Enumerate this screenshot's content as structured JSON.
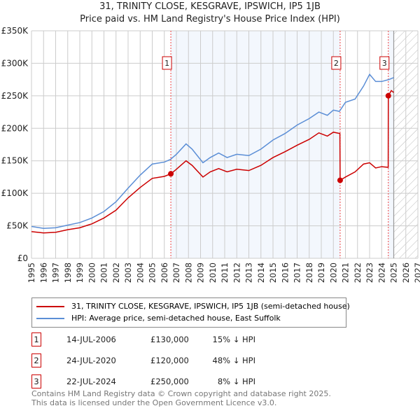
{
  "chart_data": {
    "type": "line",
    "title": "31, TRINITY CLOSE, KESGRAVE, IPSWICH, IP5 1JB",
    "subtitle": "Price paid vs. HM Land Registry's House Price Index (HPI)",
    "xlim": [
      1995,
      2027
    ],
    "ylim": [
      0,
      350000
    ],
    "x_ticks": [
      "1995",
      "1996",
      "1997",
      "1998",
      "1999",
      "2000",
      "2001",
      "2002",
      "2003",
      "2004",
      "2005",
      "2006",
      "2007",
      "2008",
      "2009",
      "2010",
      "2011",
      "2012",
      "2013",
      "2014",
      "2015",
      "2016",
      "2017",
      "2018",
      "2019",
      "2020",
      "2021",
      "2022",
      "2023",
      "2024",
      "2025",
      "2026",
      "2027"
    ],
    "y_ticks": [
      {
        "v": 0,
        "label": "£0"
      },
      {
        "v": 50000,
        "label": "£50K"
      },
      {
        "v": 100000,
        "label": "£100K"
      },
      {
        "v": 150000,
        "label": "£150K"
      },
      {
        "v": 200000,
        "label": "£200K"
      },
      {
        "v": 250000,
        "label": "£250K"
      },
      {
        "v": 300000,
        "label": "£300K"
      },
      {
        "v": 350000,
        "label": "£350K"
      }
    ],
    "grid": true,
    "forecast_from": 2025,
    "series": [
      {
        "name": "31, TRINITY CLOSE, KESGRAVE, IPSWICH, IP5 1JB (semi-detached house)",
        "color": "#cc0000",
        "x": [
          1995,
          1996,
          1997,
          1998,
          1999,
          2000,
          2001,
          2002,
          2003,
          2004,
          2005,
          2006,
          2006.54,
          2007,
          2007.8,
          2008.3,
          2009.2,
          2009.8,
          2010.5,
          2011.2,
          2012,
          2013,
          2014,
          2015,
          2016,
          2017,
          2018,
          2018.8,
          2019.5,
          2020,
          2020.54,
          2020.56,
          2021,
          2021.8,
          2022.5,
          2023,
          2023.5,
          2024,
          2024.54,
          2024.55,
          2024.8,
          2025
        ],
        "y": [
          41000,
          39000,
          40000,
          44000,
          47000,
          53000,
          62000,
          74000,
          93000,
          109000,
          123000,
          126000,
          130000,
          137000,
          150000,
          143000,
          125000,
          133000,
          138000,
          133000,
          137000,
          135000,
          143000,
          155000,
          164000,
          174000,
          183000,
          193000,
          188000,
          194000,
          192000,
          120000,
          125000,
          133000,
          145000,
          147000,
          139000,
          141000,
          140000,
          250000,
          258000,
          255000
        ]
      },
      {
        "name": "HPI: Average price, semi-detached house, East Suffolk",
        "color": "#5b8ed6",
        "x": [
          1995,
          1996,
          1997,
          1998,
          1999,
          2000,
          2001,
          2002,
          2003,
          2004,
          2005,
          2006,
          2006.5,
          2007,
          2007.8,
          2008.3,
          2009.2,
          2009.8,
          2010.5,
          2011.2,
          2012,
          2013,
          2014,
          2015,
          2016,
          2017,
          2018,
          2018.8,
          2019.5,
          2020,
          2020.5,
          2021,
          2021.8,
          2022.5,
          2023,
          2023.5,
          2024,
          2024.6,
          2025
        ],
        "y": [
          49000,
          46000,
          47000,
          51000,
          55000,
          62000,
          72000,
          87000,
          108000,
          128000,
          145000,
          148000,
          152000,
          160000,
          176000,
          168000,
          147000,
          155000,
          162000,
          155000,
          160000,
          158000,
          168000,
          182000,
          192000,
          205000,
          215000,
          225000,
          220000,
          228000,
          226000,
          240000,
          245000,
          265000,
          283000,
          272000,
          272000,
          275000,
          278000
        ]
      }
    ],
    "sales": [
      {
        "label": "1",
        "date": "14-JUL-2006",
        "x": 2006.54,
        "price": "£130,000",
        "value": 130000,
        "diff": "15% ↓ HPI"
      },
      {
        "label": "2",
        "date": "24-JUL-2020",
        "x": 2020.56,
        "price": "£120,000",
        "value": 120000,
        "diff": "48% ↓ HPI"
      },
      {
        "label": "3",
        "date": "22-JUL-2024",
        "x": 2024.55,
        "price": "£250,000",
        "value": 250000,
        "diff": "8% ↓ HPI"
      }
    ]
  },
  "footer": {
    "line1": "Contains HM Land Registry data © Crown copyright and database right 2025.",
    "line2": "This data is licensed under the Open Government Licence v3.0."
  }
}
